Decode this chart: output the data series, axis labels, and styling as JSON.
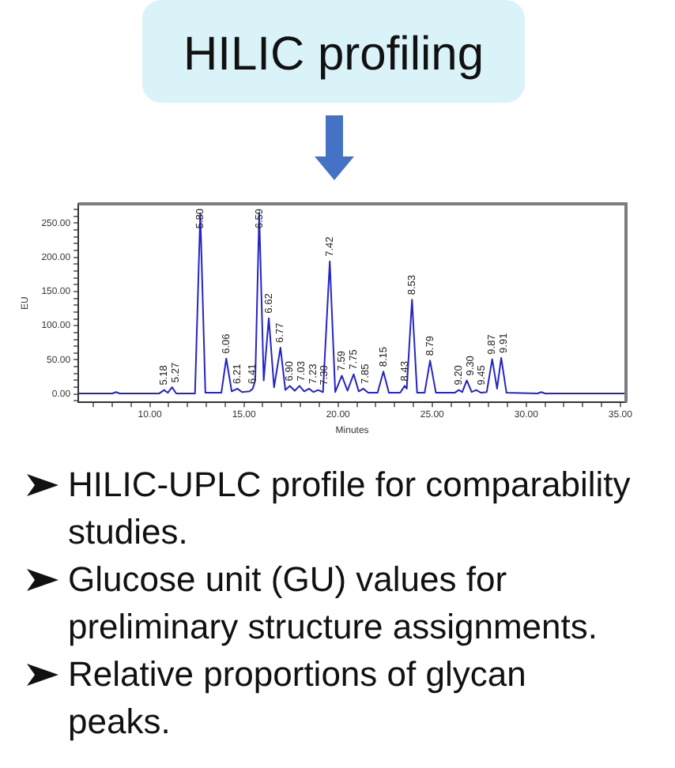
{
  "chart_data": {
    "type": "line",
    "title": "HILIC profiling",
    "xlabel": "Minutes",
    "ylabel": "EU",
    "x": [
      6.2,
      8.0,
      8.2,
      8.4,
      10.5,
      10.76,
      10.95,
      11.18,
      11.4,
      12.4,
      12.68,
      12.95,
      13.8,
      14.06,
      14.35,
      14.65,
      14.9,
      15.3,
      15.47,
      15.6,
      15.81,
      16.05,
      16.32,
      16.6,
      16.94,
      17.2,
      17.44,
      17.7,
      17.95,
      18.2,
      18.46,
      18.7,
      18.94,
      19.2,
      19.56,
      19.85,
      20.2,
      20.5,
      20.83,
      21.1,
      21.34,
      21.6,
      22.1,
      22.41,
      22.7,
      23.3,
      23.54,
      23.65,
      23.93,
      24.2,
      24.6,
      24.89,
      25.2,
      26.2,
      26.41,
      26.6,
      26.84,
      27.1,
      27.34,
      27.6,
      27.9,
      28.19,
      28.45,
      28.67,
      28.95,
      30.6,
      30.8,
      31.0,
      35.3
    ],
    "series": [
      {
        "color": "#2424c8",
        "values": [
          1,
          1,
          3,
          1,
          1,
          6,
          2,
          10,
          1,
          1,
          264,
          2,
          2,
          52,
          4,
          8,
          3,
          4,
          8,
          20,
          264,
          20,
          111,
          10,
          68,
          6,
          12,
          5,
          12,
          4,
          8,
          3,
          6,
          3,
          194,
          3,
          27,
          5,
          29,
          4,
          8,
          2,
          2,
          33,
          2,
          2,
          12,
          8,
          138,
          2,
          2,
          49,
          2,
          2,
          6,
          3,
          20,
          3,
          6,
          2,
          3,
          51,
          8,
          53,
          2,
          1,
          3,
          1,
          1
        ]
      }
    ],
    "xlim": [
      6.2,
      35.3
    ],
    "ylim": [
      -12,
      278
    ],
    "xticks": [
      {
        "value": 7,
        "label": null
      },
      {
        "value": 8,
        "label": null
      },
      {
        "value": 9,
        "label": null
      },
      {
        "value": 10,
        "label": "10.00"
      },
      {
        "value": 11,
        "label": null
      },
      {
        "value": 12,
        "label": null
      },
      {
        "value": 13,
        "label": null
      },
      {
        "value": 14,
        "label": null
      },
      {
        "value": 15,
        "label": "15.00"
      },
      {
        "value": 16,
        "label": null
      },
      {
        "value": 17,
        "label": null
      },
      {
        "value": 18,
        "label": null
      },
      {
        "value": 19,
        "label": null
      },
      {
        "value": 20,
        "label": "20.00"
      },
      {
        "value": 21,
        "label": null
      },
      {
        "value": 22,
        "label": null
      },
      {
        "value": 23,
        "label": null
      },
      {
        "value": 24,
        "label": null
      },
      {
        "value": 25,
        "label": "25.00"
      },
      {
        "value": 26,
        "label": null
      },
      {
        "value": 27,
        "label": null
      },
      {
        "value": 28,
        "label": null
      },
      {
        "value": 29,
        "label": null
      },
      {
        "value": 30,
        "label": "30.00"
      },
      {
        "value": 31,
        "label": null
      },
      {
        "value": 32,
        "label": null
      },
      {
        "value": 33,
        "label": null
      },
      {
        "value": 34,
        "label": null
      },
      {
        "value": 35,
        "label": "35.00"
      }
    ],
    "yticks": [
      {
        "value": -10,
        "label": null
      },
      {
        "value": 0,
        "label": "0.00"
      },
      {
        "value": 10,
        "label": null
      },
      {
        "value": 20,
        "label": null
      },
      {
        "value": 30,
        "label": null
      },
      {
        "value": 40,
        "label": null
      },
      {
        "value": 50,
        "label": "50.00"
      },
      {
        "value": 60,
        "label": null
      },
      {
        "value": 70,
        "label": null
      },
      {
        "value": 80,
        "label": null
      },
      {
        "value": 90,
        "label": null
      },
      {
        "value": 100,
        "label": "100.00"
      },
      {
        "value": 110,
        "label": null
      },
      {
        "value": 120,
        "label": null
      },
      {
        "value": 130,
        "label": null
      },
      {
        "value": 140,
        "label": null
      },
      {
        "value": 150,
        "label": "150.00"
      },
      {
        "value": 160,
        "label": null
      },
      {
        "value": 170,
        "label": null
      },
      {
        "value": 180,
        "label": null
      },
      {
        "value": 190,
        "label": null
      },
      {
        "value": 200,
        "label": "200.00"
      },
      {
        "value": 210,
        "label": null
      },
      {
        "value": 220,
        "label": null
      },
      {
        "value": 230,
        "label": null
      },
      {
        "value": 240,
        "label": null
      },
      {
        "value": 250,
        "label": "250.00"
      },
      {
        "value": 260,
        "label": null
      },
      {
        "value": 270,
        "label": null
      }
    ],
    "grid": false,
    "legend": false,
    "annotations": [
      {
        "text": "5.18",
        "x": 10.76,
        "y": 6
      },
      {
        "text": "5.27",
        "x": 11.18,
        "y": 10
      },
      {
        "text": "5.80",
        "x": 12.68,
        "y": 264
      },
      {
        "text": "6.06",
        "x": 14.06,
        "y": 52
      },
      {
        "text": "6.21",
        "x": 14.65,
        "y": 8
      },
      {
        "text": "6.41",
        "x": 15.47,
        "y": 8
      },
      {
        "text": "6.59",
        "x": 15.81,
        "y": 264
      },
      {
        "text": "6.62",
        "x": 16.32,
        "y": 111
      },
      {
        "text": "6.77",
        "x": 16.94,
        "y": 68
      },
      {
        "text": "6.90",
        "x": 17.44,
        "y": 12
      },
      {
        "text": "7.03",
        "x": 17.95,
        "y": 12
      },
      {
        "text": "7.23",
        "x": 18.46,
        "y": 8
      },
      {
        "text": "7.30",
        "x": 18.94,
        "y": 6
      },
      {
        "text": "7.42",
        "x": 19.56,
        "y": 194
      },
      {
        "text": "7.59",
        "x": 20.2,
        "y": 27
      },
      {
        "text": "7.75",
        "x": 20.83,
        "y": 29
      },
      {
        "text": "7.85",
        "x": 21.34,
        "y": 8
      },
      {
        "text": "8.15",
        "x": 22.41,
        "y": 33
      },
      {
        "text": "8.43",
        "x": 23.54,
        "y": 12
      },
      {
        "text": "8.53",
        "x": 23.93,
        "y": 138
      },
      {
        "text": "8.79",
        "x": 24.89,
        "y": 49
      },
      {
        "text": "9.20",
        "x": 26.41,
        "y": 6
      },
      {
        "text": "9.30",
        "x": 26.84,
        "y": 20
      },
      {
        "text": "9.45",
        "x": 27.34,
        "y": 6
      },
      {
        "text": "9.87",
        "x": 28.19,
        "y": 51
      },
      {
        "text": "9.91",
        "x": 28.67,
        "y": 53
      },
      "HILIC-UPLC profile for comparability studies.",
      "Glucose unit (GU) values for preliminary structure assignments.",
      "Relative proportions of glycan peaks."
    ]
  }
}
